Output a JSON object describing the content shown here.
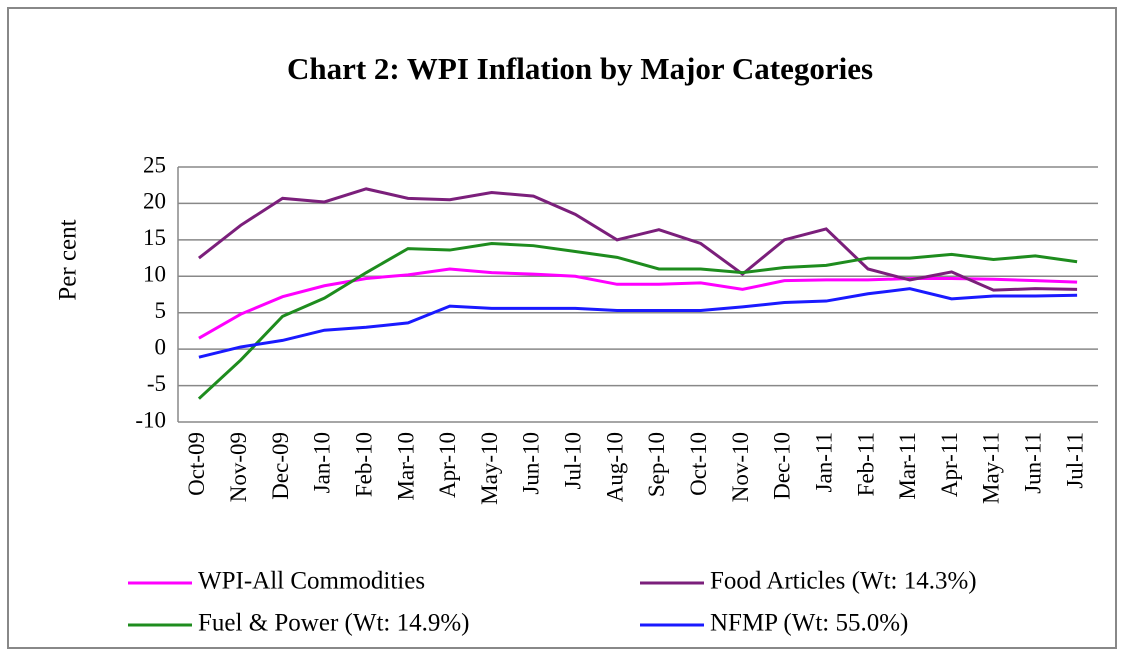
{
  "chart_data": {
    "type": "line",
    "title": "Chart 2: WPI Inflation by Major Categories",
    "y_label": "Per cent",
    "categories": [
      "Oct-09",
      "Nov-09",
      "Dec-09",
      "Jan-10",
      "Feb-10",
      "Mar-10",
      "Apr-10",
      "May-10",
      "Jun-10",
      "Jul-10",
      "Aug-10",
      "Sep-10",
      "Oct-10",
      "Nov-10",
      "Dec-10",
      "Jan-11",
      "Feb-11",
      "Mar-11",
      "Apr-11",
      "May-11",
      "Jun-11",
      "Jul-11"
    ],
    "series": [
      {
        "name": "WPI-All Commodities",
        "color": "#ff00ff",
        "values": [
          1.5,
          4.8,
          7.2,
          8.7,
          9.7,
          10.2,
          11.0,
          10.5,
          10.3,
          10.0,
          8.9,
          8.9,
          9.1,
          8.2,
          9.4,
          9.5,
          9.5,
          9.7,
          9.7,
          9.6,
          9.4,
          9.2
        ]
      },
      {
        "name": "Food Articles (Wt: 14.3%)",
        "color": "#7b1f7b",
        "values": [
          12.5,
          17.0,
          20.7,
          20.2,
          22.0,
          20.7,
          20.5,
          21.5,
          21.0,
          18.5,
          15.0,
          16.4,
          14.5,
          10.3,
          15.0,
          16.5,
          11.0,
          9.5,
          10.6,
          8.1,
          8.3,
          8.2
        ]
      },
      {
        "name": "Fuel & Power (Wt: 14.9%)",
        "color": "#1e8c1e",
        "values": [
          -6.8,
          -1.5,
          4.5,
          7.0,
          10.5,
          13.8,
          13.6,
          14.5,
          14.2,
          13.4,
          12.6,
          11.0,
          11.0,
          10.5,
          11.2,
          11.5,
          12.5,
          12.5,
          13.0,
          12.3,
          12.8,
          12.0
        ]
      },
      {
        "name": "NFMP (Wt: 55.0%)",
        "color": "#1a1aff",
        "values": [
          -1.1,
          0.3,
          1.2,
          2.6,
          3.0,
          3.6,
          5.9,
          5.6,
          5.6,
          5.6,
          5.3,
          5.3,
          5.3,
          5.8,
          6.4,
          6.6,
          7.6,
          8.3,
          6.9,
          7.3,
          7.3,
          7.4
        ]
      }
    ],
    "ylim": [
      -10,
      25
    ],
    "yticks": [
      -10,
      -5,
      0,
      5,
      10,
      15,
      20,
      25
    ],
    "grid": true,
    "legend": "bottom"
  }
}
